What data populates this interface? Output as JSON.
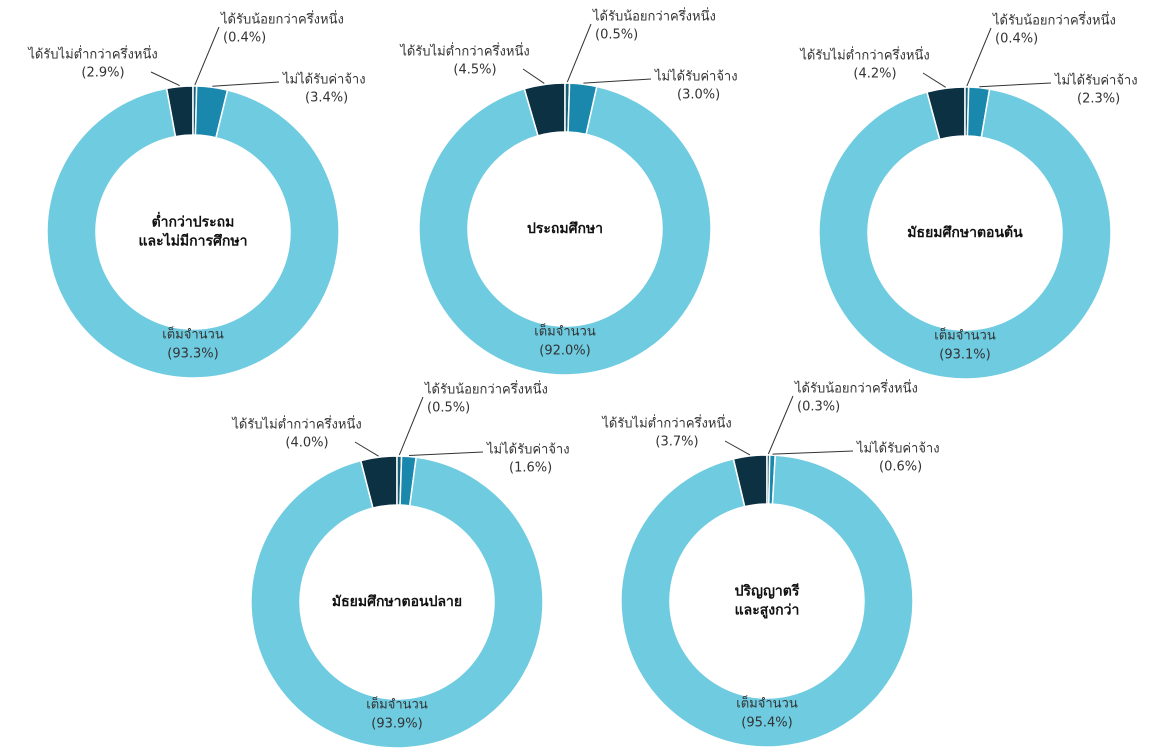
{
  "chart_data": [
    {
      "type": "pie",
      "title": [
        "ต่ำกว่าประถม",
        "และไม่มีการศึกษา"
      ],
      "categories": [
        "ได้รับไม่ต่ำกว่าครึ่งหนึ่ง",
        "ได้รับน้อยกว่าครึ่งหนึ่ง",
        "ไม่ได้รับค่าจ้าง",
        "เต็มจำนวน"
      ],
      "values": [
        2.9,
        0.4,
        3.4,
        93.3
      ],
      "value_labels": [
        "(2.9%)",
        "(0.4%)",
        "(3.4%)",
        "(93.3%)"
      ],
      "colors": [
        "#0c3142",
        "#16607a",
        "#1a88ad",
        "#6ecbe0"
      ]
    },
    {
      "type": "pie",
      "title": [
        "ประถมศึกษา"
      ],
      "categories": [
        "ได้รับไม่ต่ำกว่าครึ่งหนึ่ง",
        "ได้รับน้อยกว่าครึ่งหนึ่ง",
        "ไม่ได้รับค่าจ้าง",
        "เต็มจำนวน"
      ],
      "values": [
        4.5,
        0.5,
        3.0,
        92.0
      ],
      "value_labels": [
        "(4.5%)",
        "(0.5%)",
        "(3.0%)",
        "(92.0%)"
      ],
      "colors": [
        "#0c3142",
        "#16607a",
        "#1a88ad",
        "#6ecbe0"
      ]
    },
    {
      "type": "pie",
      "title": [
        "มัธยมศึกษาตอนต้น"
      ],
      "categories": [
        "ได้รับไม่ต่ำกว่าครึ่งหนึ่ง",
        "ได้รับน้อยกว่าครึ่งหนึ่ง",
        "ไม่ได้รับค่าจ้าง",
        "เต็มจำนวน"
      ],
      "values": [
        4.2,
        0.4,
        2.3,
        93.1
      ],
      "value_labels": [
        "(4.2%)",
        "(0.4%)",
        "(2.3%)",
        "(93.1%)"
      ],
      "colors": [
        "#0c3142",
        "#16607a",
        "#1a88ad",
        "#6ecbe0"
      ]
    },
    {
      "type": "pie",
      "title": [
        "มัธยมศึกษาตอนปลาย"
      ],
      "categories": [
        "ได้รับไม่ต่ำกว่าครึ่งหนึ่ง",
        "ได้รับน้อยกว่าครึ่งหนึ่ง",
        "ไม่ได้รับค่าจ้าง",
        "เต็มจำนวน"
      ],
      "values": [
        4.0,
        0.5,
        1.6,
        93.9
      ],
      "value_labels": [
        "(4.0%)",
        "(0.5%)",
        "(1.6%)",
        "(93.9%)"
      ],
      "colors": [
        "#0c3142",
        "#16607a",
        "#1a88ad",
        "#6ecbe0"
      ]
    },
    {
      "type": "pie",
      "title": [
        "ปริญญาตรี",
        "และสูงกว่า"
      ],
      "categories": [
        "ได้รับไม่ต่ำกว่าครึ่งหนึ่ง",
        "ได้รับน้อยกว่าครึ่งหนึ่ง",
        "ไม่ได้รับค่าจ้าง",
        "เต็มจำนวน"
      ],
      "values": [
        3.7,
        0.3,
        0.6,
        95.4
      ],
      "value_labels": [
        "(3.7%)",
        "(0.3%)",
        "(0.6%)",
        "(95.4%)"
      ],
      "colors": [
        "#0c3142",
        "#16607a",
        "#1a88ad",
        "#6ecbe0"
      ]
    }
  ]
}
